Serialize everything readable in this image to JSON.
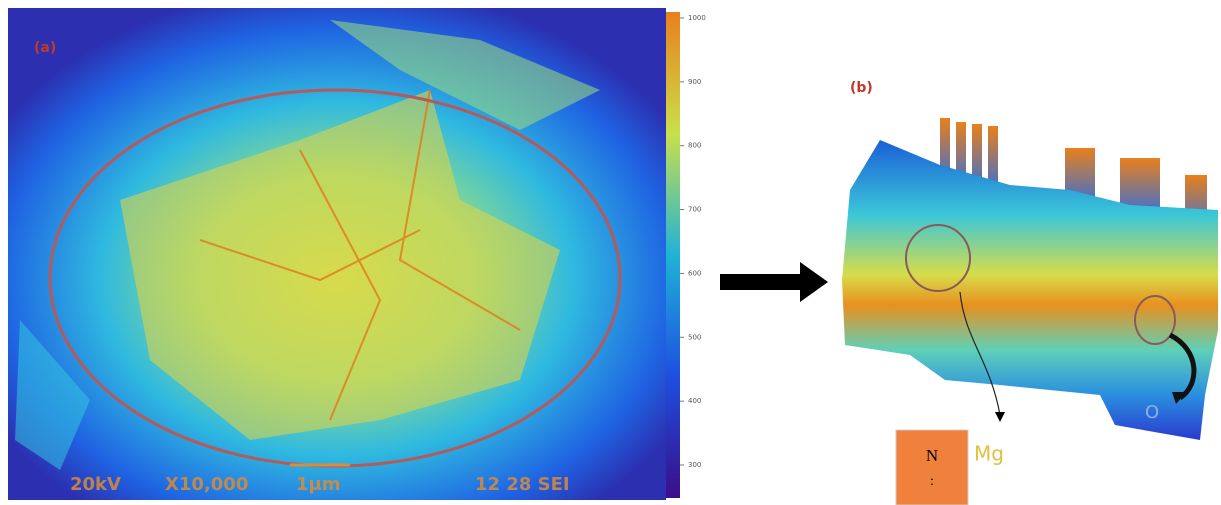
{
  "panel_a": {
    "label": "(a)",
    "info_bar": [
      "20kV",
      "X10,000",
      "1μm",
      "12 28 SEI"
    ],
    "colorbar_ticks": [
      "1000",
      "900",
      "800",
      "700",
      "600",
      "500",
      "400",
      "300"
    ]
  },
  "panel_b": {
    "label": "(b)",
    "annotations": {
      "box_label": "N",
      "box_sub": ":",
      "mg": "Mg",
      "o": "O"
    }
  }
}
